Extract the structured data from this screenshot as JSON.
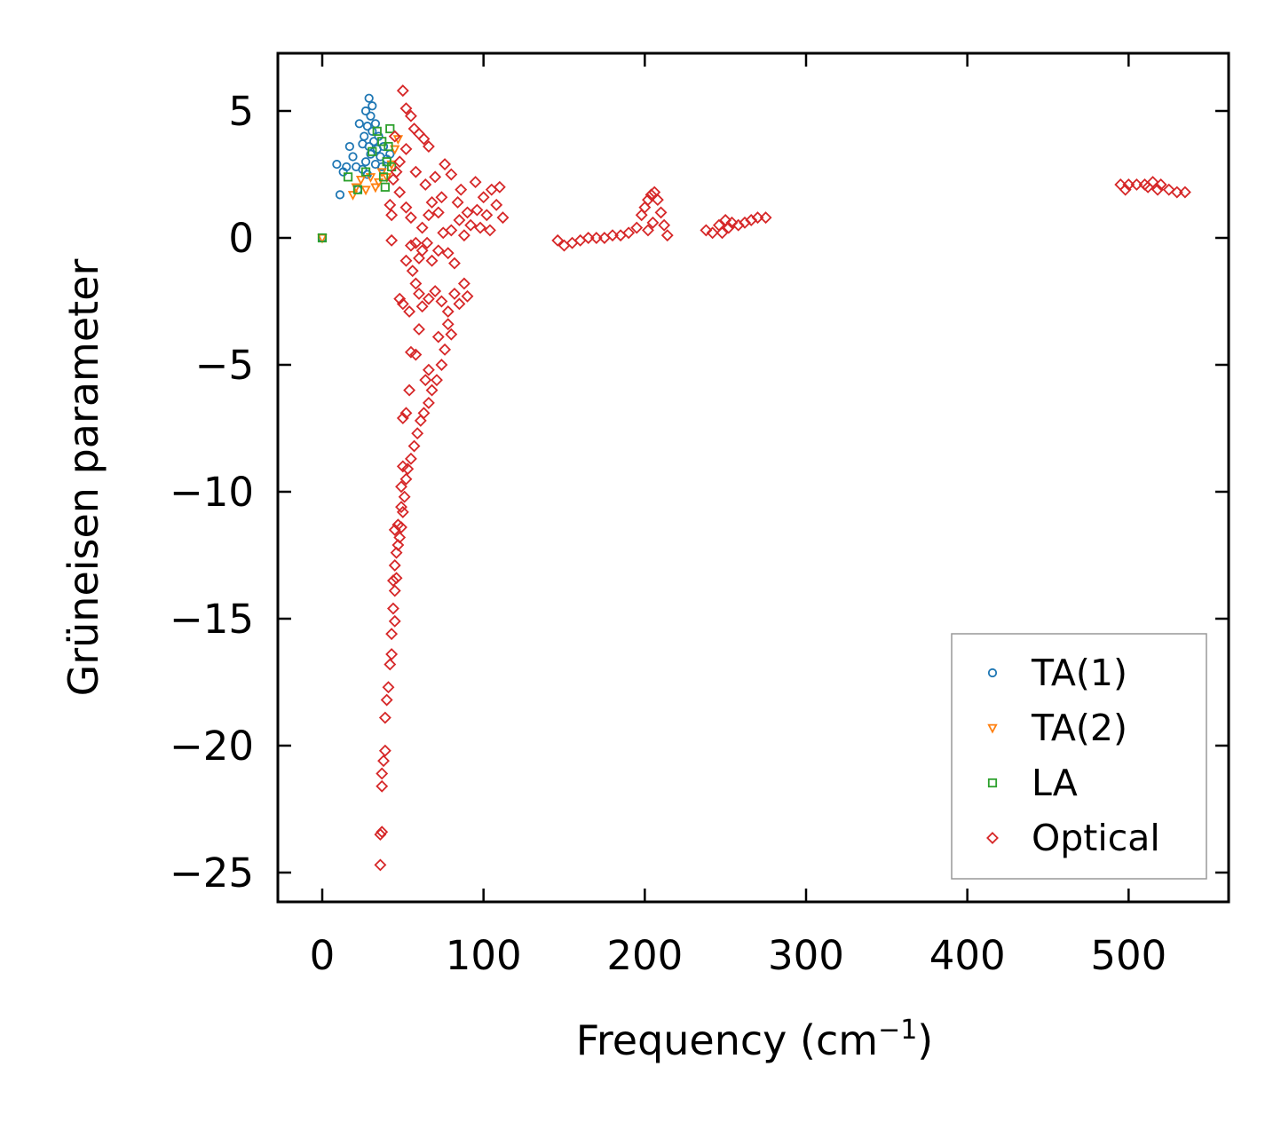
{
  "chart_data": {
    "type": "scatter",
    "title": "",
    "xlabel": "Frequency (cm",
    "xlabel_sup": "−1",
    "xlabel_suffix": ")",
    "ylabel": "Grüneisen parameter",
    "xlim": [
      -27,
      560
    ],
    "ylim": [
      -26.1,
      7.3
    ],
    "xticks": [
      0,
      100,
      200,
      300,
      400,
      500
    ],
    "xtick_labels": [
      "0",
      "100",
      "200",
      "300",
      "400",
      "500"
    ],
    "yticks": [
      5,
      0,
      -5,
      -10,
      -15,
      -20,
      -25
    ],
    "ytick_labels": [
      "5",
      "0",
      "−5",
      "−10",
      "−15",
      "−20",
      "−25"
    ],
    "legend_position": "lower-right",
    "series": [
      {
        "name": "TA(1)",
        "marker": "circle",
        "color": "#1f77b4",
        "points": [
          [
            0,
            0
          ],
          [
            9,
            2.9
          ],
          [
            11,
            1.7
          ],
          [
            13,
            2.6
          ],
          [
            15,
            2.8
          ],
          [
            17,
            3.6
          ],
          [
            19,
            3.2
          ],
          [
            21,
            2.8
          ],
          [
            22,
            1.9
          ],
          [
            23,
            4.5
          ],
          [
            25,
            3.7
          ],
          [
            25,
            2.7
          ],
          [
            26,
            4.0
          ],
          [
            27,
            5.0
          ],
          [
            27,
            3.0
          ],
          [
            28,
            4.4
          ],
          [
            28,
            2.5
          ],
          [
            29,
            5.5
          ],
          [
            29,
            3.6
          ],
          [
            30,
            4.8
          ],
          [
            30,
            3.3
          ],
          [
            31,
            4.2
          ],
          [
            31,
            5.2
          ],
          [
            32,
            3.8
          ],
          [
            33,
            4.5
          ],
          [
            33,
            2.9
          ],
          [
            34,
            3.5
          ],
          [
            35,
            4.0
          ],
          [
            36,
            3.2
          ],
          [
            37,
            2.8
          ],
          [
            38,
            3.6
          ],
          [
            40,
            3.1
          ],
          [
            42,
            3.3
          ]
        ]
      },
      {
        "name": "TA(2)",
        "marker": "triangle-down",
        "color": "#ff7f0e",
        "points": [
          [
            0,
            0
          ],
          [
            19,
            1.7
          ],
          [
            21,
            2.0
          ],
          [
            24,
            2.3
          ],
          [
            27,
            1.9
          ],
          [
            30,
            2.4
          ],
          [
            33,
            2.0
          ],
          [
            35,
            2.2
          ],
          [
            37,
            2.6
          ],
          [
            40,
            2.4
          ],
          [
            43,
            2.9
          ],
          [
            45,
            3.5
          ],
          [
            47,
            3.9
          ]
        ]
      },
      {
        "name": "LA",
        "marker": "square",
        "color": "#2ca02c",
        "points": [
          [
            0,
            0
          ],
          [
            16,
            2.4
          ],
          [
            22,
            1.9
          ],
          [
            27,
            2.6
          ],
          [
            31,
            3.4
          ],
          [
            34,
            4.2
          ],
          [
            37,
            3.8
          ],
          [
            38,
            2.4
          ],
          [
            39,
            2.0
          ],
          [
            40,
            3.0
          ],
          [
            41,
            3.6
          ],
          [
            42,
            4.3
          ],
          [
            43,
            2.8
          ]
        ]
      },
      {
        "name": "Optical",
        "marker": "diamond",
        "color": "#d62728",
        "points": [
          [
            50,
            5.8
          ],
          [
            52,
            5.1
          ],
          [
            55,
            4.8
          ],
          [
            57,
            4.3
          ],
          [
            60,
            4.1
          ],
          [
            63,
            3.9
          ],
          [
            66,
            3.6
          ],
          [
            42,
            1.3
          ],
          [
            43,
            0.9
          ],
          [
            43,
            -0.1
          ],
          [
            46,
            2.6
          ],
          [
            48,
            1.8
          ],
          [
            52,
            1.2
          ],
          [
            55,
            0.8
          ],
          [
            55,
            -0.3
          ],
          [
            58,
            -0.2
          ],
          [
            60,
            -0.8
          ],
          [
            52,
            -0.9
          ],
          [
            56,
            -1.3
          ],
          [
            58,
            -1.8
          ],
          [
            62,
            -0.5
          ],
          [
            65,
            -0.2
          ],
          [
            68,
            -0.9
          ],
          [
            72,
            -0.5
          ],
          [
            75,
            0.2
          ],
          [
            78,
            -0.6
          ],
          [
            80,
            0.3
          ],
          [
            85,
            0.7
          ],
          [
            88,
            0.1
          ],
          [
            82,
            -1.0
          ],
          [
            60,
            -2.2
          ],
          [
            62,
            -2.7
          ],
          [
            66,
            -2.4
          ],
          [
            70,
            -2.1
          ],
          [
            74,
            -2.5
          ],
          [
            78,
            -2.9
          ],
          [
            82,
            -2.2
          ],
          [
            85,
            -2.6
          ],
          [
            50,
            -2.6
          ],
          [
            54,
            -2.9
          ],
          [
            48,
            -2.4
          ],
          [
            88,
            -1.8
          ],
          [
            90,
            -2.3
          ],
          [
            76,
            -4.4
          ],
          [
            74,
            -5.0
          ],
          [
            71,
            -5.6
          ],
          [
            68,
            -6.0
          ],
          [
            66,
            -6.5
          ],
          [
            63,
            -6.9
          ],
          [
            61,
            -7.2
          ],
          [
            59,
            -7.7
          ],
          [
            57,
            -8.2
          ],
          [
            55,
            -8.7
          ],
          [
            53,
            -9.1
          ],
          [
            52,
            -9.5
          ],
          [
            51,
            -10.2
          ],
          [
            50,
            -10.8
          ],
          [
            49,
            -11.4
          ],
          [
            48,
            -11.8
          ],
          [
            47,
            -12.1
          ],
          [
            46,
            -12.4
          ],
          [
            45,
            -12.9
          ],
          [
            46,
            -13.4
          ],
          [
            45,
            -13.9
          ],
          [
            44,
            -14.6
          ],
          [
            45,
            -15.1
          ],
          [
            43,
            -15.6
          ],
          [
            43,
            -16.4
          ],
          [
            42,
            -16.8
          ],
          [
            41,
            -17.7
          ],
          [
            40,
            -18.2
          ],
          [
            39,
            -18.9
          ],
          [
            39,
            -20.2
          ],
          [
            38,
            -20.6
          ],
          [
            37,
            -21.1
          ],
          [
            37,
            -21.6
          ],
          [
            37,
            -23.4
          ],
          [
            36,
            -23.5
          ],
          [
            36,
            -24.7
          ],
          [
            54,
            -6.0
          ],
          [
            52,
            -6.9
          ],
          [
            50,
            -7.1
          ],
          [
            50,
            -9.0
          ],
          [
            49,
            -9.8
          ],
          [
            49,
            -10.6
          ],
          [
            47,
            -11.3
          ],
          [
            45,
            -11.5
          ],
          [
            55,
            -4.5
          ],
          [
            58,
            -4.6
          ],
          [
            60,
            -3.6
          ],
          [
            64,
            -5.6
          ],
          [
            66,
            -5.2
          ],
          [
            44,
            -13.5
          ],
          [
            72,
            -3.9
          ],
          [
            78,
            -3.4
          ],
          [
            80,
            -3.8
          ],
          [
            96,
            1.1
          ],
          [
            100,
            1.6
          ],
          [
            105,
            1.9
          ],
          [
            108,
            1.3
          ],
          [
            112,
            0.8
          ],
          [
            110,
            2.0
          ],
          [
            95,
            2.2
          ],
          [
            92,
            0.5
          ],
          [
            102,
            0.9
          ],
          [
            86,
            1.9
          ],
          [
            80,
            2.5
          ],
          [
            76,
            2.9
          ],
          [
            70,
            2.4
          ],
          [
            64,
            2.1
          ],
          [
            58,
            2.6
          ],
          [
            52,
            3.5
          ],
          [
            48,
            3.0
          ],
          [
            44,
            2.3
          ],
          [
            45,
            4.0
          ],
          [
            68,
            1.4
          ],
          [
            72,
            1.0
          ],
          [
            62,
            0.4
          ],
          [
            66,
            0.9
          ],
          [
            74,
            1.6
          ],
          [
            84,
            1.4
          ],
          [
            90,
            1.0
          ],
          [
            98,
            0.4
          ],
          [
            104,
            0.3
          ],
          [
            146,
            -0.1
          ],
          [
            150,
            -0.3
          ],
          [
            155,
            -0.2
          ],
          [
            160,
            -0.1
          ],
          [
            165,
            0.0
          ],
          [
            170,
            0.0
          ],
          [
            175,
            0.0
          ],
          [
            180,
            0.1
          ],
          [
            185,
            0.1
          ],
          [
            190,
            0.2
          ],
          [
            195,
            0.4
          ],
          [
            198,
            0.9
          ],
          [
            200,
            1.2
          ],
          [
            202,
            1.5
          ],
          [
            204,
            1.7
          ],
          [
            206,
            1.8
          ],
          [
            208,
            1.5
          ],
          [
            210,
            1.0
          ],
          [
            212,
            0.5
          ],
          [
            214,
            0.1
          ],
          [
            202,
            0.3
          ],
          [
            205,
            0.6
          ],
          [
            238,
            0.3
          ],
          [
            242,
            0.2
          ],
          [
            246,
            0.5
          ],
          [
            250,
            0.7
          ],
          [
            254,
            0.6
          ],
          [
            258,
            0.5
          ],
          [
            262,
            0.6
          ],
          [
            266,
            0.7
          ],
          [
            270,
            0.8
          ],
          [
            275,
            0.8
          ],
          [
            248,
            0.2
          ],
          [
            252,
            0.4
          ],
          [
            495,
            2.1
          ],
          [
            500,
            2.1
          ],
          [
            505,
            2.1
          ],
          [
            510,
            2.1
          ],
          [
            515,
            2.2
          ],
          [
            520,
            2.1
          ],
          [
            525,
            1.9
          ],
          [
            530,
            1.8
          ],
          [
            535,
            1.8
          ],
          [
            498,
            1.9
          ],
          [
            512,
            2.0
          ],
          [
            518,
            1.9
          ]
        ]
      }
    ]
  }
}
